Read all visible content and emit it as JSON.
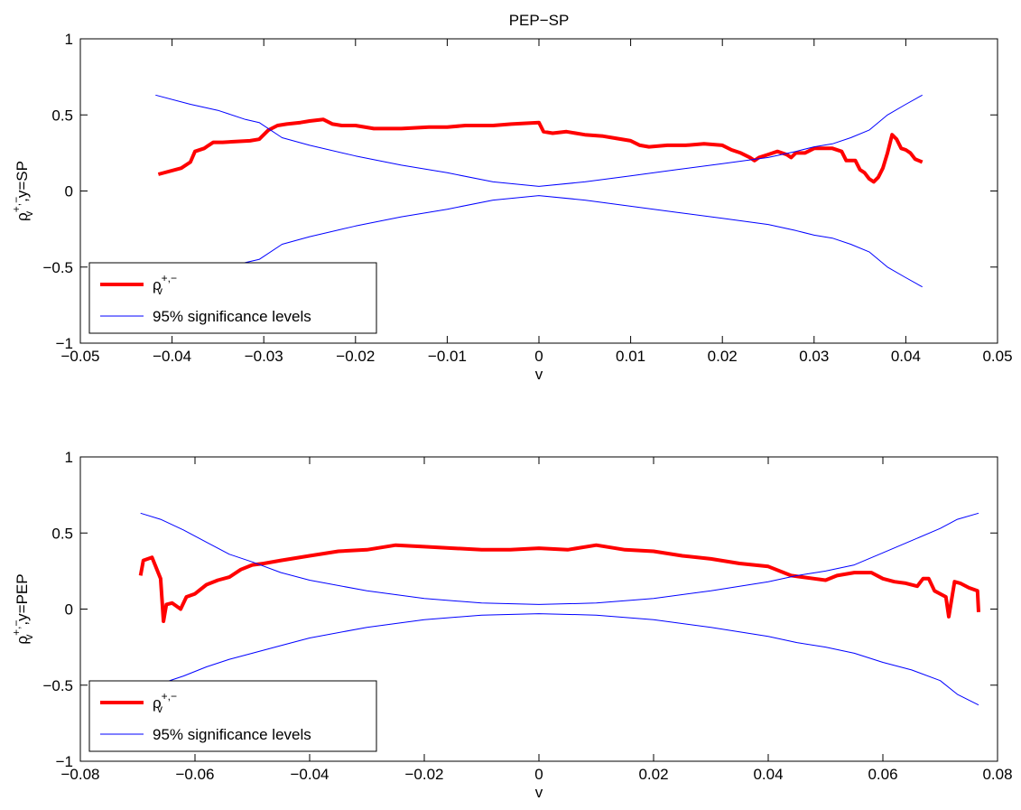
{
  "figure_title": "PEP−SP",
  "chart_data": [
    {
      "type": "line",
      "xlabel": "v",
      "ylabel": {
        "base": "ρ",
        "sup": "+,−",
        "sub": "v",
        "suffix": ",y=SP"
      },
      "xlim": [
        -0.05,
        0.05
      ],
      "ylim": [
        -1,
        1
      ],
      "xticks": [
        -0.05,
        -0.04,
        -0.03,
        -0.02,
        -0.01,
        0,
        0.01,
        0.02,
        0.03,
        0.04,
        0.05
      ],
      "xtick_labels": [
        "−0.05",
        "−0.04",
        "−0.03",
        "−0.02",
        "−0.01",
        "0",
        "0.01",
        "0.02",
        "0.03",
        "0.04",
        "0.05"
      ],
      "yticks": [
        -1,
        -0.5,
        0,
        0.5,
        1
      ],
      "ytick_labels": [
        "−1",
        "−0.5",
        "0",
        "0.5",
        "1"
      ],
      "grid": false,
      "legend_position": "bottom-left",
      "legend": [
        {
          "label_base": "ρ",
          "label_sup": "+,−",
          "label_sub": "v",
          "color": "#ff0000",
          "style": "thick"
        },
        {
          "label": "95% significance levels",
          "color": "#0000ff",
          "style": "thin"
        }
      ],
      "series": [
        {
          "color": "#ff0000",
          "x": [
            -0.0415,
            -0.039,
            -0.038,
            -0.0375,
            -0.0365,
            -0.036,
            -0.0355,
            -0.0345,
            -0.0315,
            -0.0305,
            -0.0295,
            -0.0285,
            -0.0275,
            -0.026,
            -0.025,
            -0.0235,
            -0.0225,
            -0.0215,
            -0.02,
            -0.018,
            -0.015,
            -0.012,
            -0.01,
            -0.008,
            -0.005,
            -0.003,
            0,
            0.0005,
            0.0015,
            0.003,
            0.005,
            0.007,
            0.008,
            0.01,
            0.011,
            0.012,
            0.014,
            0.016,
            0.018,
            0.02,
            0.021,
            0.022,
            0.023,
            0.0235,
            0.024,
            0.025,
            0.026,
            0.027,
            0.0275,
            0.028,
            0.029,
            0.03,
            0.031,
            0.032,
            0.033,
            0.0335,
            0.0345,
            0.035,
            0.0355,
            0.036,
            0.0365,
            0.037,
            0.0375,
            0.038,
            0.0385,
            0.039,
            0.0395,
            0.04,
            0.0405,
            0.041,
            0.0418
          ],
          "y": [
            0.11,
            0.15,
            0.19,
            0.26,
            0.28,
            0.3,
            0.32,
            0.32,
            0.33,
            0.34,
            0.4,
            0.43,
            0.44,
            0.45,
            0.46,
            0.47,
            0.44,
            0.43,
            0.43,
            0.41,
            0.41,
            0.42,
            0.42,
            0.43,
            0.43,
            0.44,
            0.45,
            0.39,
            0.38,
            0.39,
            0.37,
            0.36,
            0.35,
            0.33,
            0.3,
            0.29,
            0.3,
            0.3,
            0.31,
            0.3,
            0.27,
            0.25,
            0.22,
            0.2,
            0.22,
            0.24,
            0.26,
            0.24,
            0.22,
            0.25,
            0.25,
            0.28,
            0.28,
            0.28,
            0.26,
            0.2,
            0.2,
            0.14,
            0.12,
            0.08,
            0.06,
            0.09,
            0.15,
            0.25,
            0.37,
            0.34,
            0.28,
            0.27,
            0.25,
            0.21,
            0.19
          ]
        },
        {
          "color": "#0000ff",
          "x": [
            -0.0418,
            -0.038,
            -0.035,
            -0.032,
            -0.0305,
            -0.028,
            -0.025,
            -0.02,
            -0.015,
            -0.01,
            -0.005,
            0,
            0.005,
            0.01,
            0.015,
            0.02,
            0.025,
            0.028,
            0.03,
            0.032,
            0.034,
            0.036,
            0.038,
            0.04,
            0.0418
          ],
          "y": [
            0.63,
            0.57,
            0.53,
            0.47,
            0.45,
            0.35,
            0.3,
            0.23,
            0.17,
            0.12,
            0.06,
            0.03,
            0.06,
            0.1,
            0.14,
            0.18,
            0.22,
            0.26,
            0.29,
            0.31,
            0.35,
            0.4,
            0.5,
            0.57,
            0.63
          ]
        },
        {
          "color": "#0000ff",
          "x": [
            -0.0418,
            -0.038,
            -0.035,
            -0.032,
            -0.0305,
            -0.028,
            -0.025,
            -0.02,
            -0.015,
            -0.01,
            -0.005,
            0,
            0.005,
            0.01,
            0.015,
            0.02,
            0.025,
            0.028,
            0.03,
            0.032,
            0.034,
            0.036,
            0.038,
            0.04,
            0.0418
          ],
          "y": [
            -0.63,
            -0.57,
            -0.53,
            -0.47,
            -0.45,
            -0.35,
            -0.3,
            -0.23,
            -0.17,
            -0.12,
            -0.06,
            -0.03,
            -0.06,
            -0.1,
            -0.14,
            -0.18,
            -0.22,
            -0.26,
            -0.29,
            -0.31,
            -0.35,
            -0.4,
            -0.5,
            -0.57,
            -0.63
          ]
        }
      ]
    },
    {
      "type": "line",
      "xlabel": "v",
      "ylabel": {
        "base": "ρ",
        "sup": "+,−",
        "sub": "v",
        "suffix": ",y=PEP"
      },
      "xlim": [
        -0.08,
        0.08
      ],
      "ylim": [
        -1,
        1
      ],
      "xticks": [
        -0.08,
        -0.06,
        -0.04,
        -0.02,
        0,
        0.02,
        0.04,
        0.06,
        0.08
      ],
      "xtick_labels": [
        "−0.08",
        "−0.06",
        "−0.04",
        "−0.02",
        "0",
        "0.02",
        "0.04",
        "0.06",
        "0.08"
      ],
      "yticks": [
        -1,
        -0.5,
        0,
        0.5,
        1
      ],
      "ytick_labels": [
        "−1",
        "−0.5",
        "0",
        "0.5",
        "1"
      ],
      "grid": false,
      "legend_position": "bottom-left",
      "legend": [
        {
          "label_base": "ρ",
          "label_sup": "+,−",
          "label_sub": "v",
          "color": "#ff0000",
          "style": "thick"
        },
        {
          "label": "95% significance levels",
          "color": "#0000ff",
          "style": "thin"
        }
      ],
      "series": [
        {
          "color": "#ff0000",
          "x": [
            -0.0695,
            -0.069,
            -0.0675,
            -0.066,
            -0.0655,
            -0.065,
            -0.064,
            -0.0625,
            -0.0615,
            -0.06,
            -0.058,
            -0.056,
            -0.054,
            -0.052,
            -0.05,
            -0.048,
            -0.045,
            -0.04,
            -0.035,
            -0.03,
            -0.025,
            -0.02,
            -0.015,
            -0.01,
            -0.005,
            0,
            0.005,
            0.01,
            0.015,
            0.02,
            0.025,
            0.03,
            0.035,
            0.04,
            0.044,
            0.046,
            0.048,
            0.05,
            0.052,
            0.055,
            0.058,
            0.06,
            0.062,
            0.064,
            0.066,
            0.067,
            0.068,
            0.069,
            0.071,
            0.0715,
            0.0725,
            0.0735,
            0.075,
            0.0765,
            0.0767
          ],
          "y": [
            0.22,
            0.32,
            0.34,
            0.2,
            -0.08,
            0.03,
            0.04,
            0.0,
            0.08,
            0.1,
            0.16,
            0.19,
            0.21,
            0.26,
            0.29,
            0.3,
            0.32,
            0.35,
            0.38,
            0.39,
            0.42,
            0.41,
            0.4,
            0.39,
            0.39,
            0.4,
            0.39,
            0.42,
            0.39,
            0.38,
            0.35,
            0.33,
            0.3,
            0.28,
            0.22,
            0.21,
            0.2,
            0.19,
            0.22,
            0.24,
            0.24,
            0.2,
            0.18,
            0.17,
            0.15,
            0.2,
            0.2,
            0.12,
            0.08,
            -0.05,
            0.18,
            0.17,
            0.14,
            0.12,
            -0.02
          ]
        },
        {
          "color": "#0000ff",
          "x": [
            -0.0695,
            -0.066,
            -0.062,
            -0.058,
            -0.054,
            -0.05,
            -0.045,
            -0.04,
            -0.03,
            -0.02,
            -0.01,
            0,
            0.01,
            0.02,
            0.03,
            0.04,
            0.045,
            0.05,
            0.055,
            0.06,
            0.065,
            0.07,
            0.073,
            0.0767
          ],
          "y": [
            0.63,
            0.59,
            0.52,
            0.44,
            0.36,
            0.31,
            0.24,
            0.19,
            0.12,
            0.07,
            0.04,
            0.03,
            0.04,
            0.07,
            0.12,
            0.18,
            0.22,
            0.25,
            0.29,
            0.37,
            0.45,
            0.53,
            0.59,
            0.63
          ]
        },
        {
          "color": "#0000ff",
          "x": [
            -0.0695,
            -0.066,
            -0.062,
            -0.058,
            -0.054,
            -0.05,
            -0.045,
            -0.04,
            -0.03,
            -0.02,
            -0.01,
            0,
            0.01,
            0.02,
            0.03,
            0.04,
            0.045,
            0.05,
            0.055,
            0.06,
            0.065,
            0.07,
            0.073,
            0.0767
          ],
          "y": [
            -0.55,
            -0.49,
            -0.44,
            -0.38,
            -0.33,
            -0.29,
            -0.24,
            -0.19,
            -0.12,
            -0.07,
            -0.04,
            -0.03,
            -0.04,
            -0.07,
            -0.12,
            -0.18,
            -0.22,
            -0.25,
            -0.29,
            -0.35,
            -0.4,
            -0.47,
            -0.56,
            -0.63
          ]
        }
      ]
    }
  ]
}
